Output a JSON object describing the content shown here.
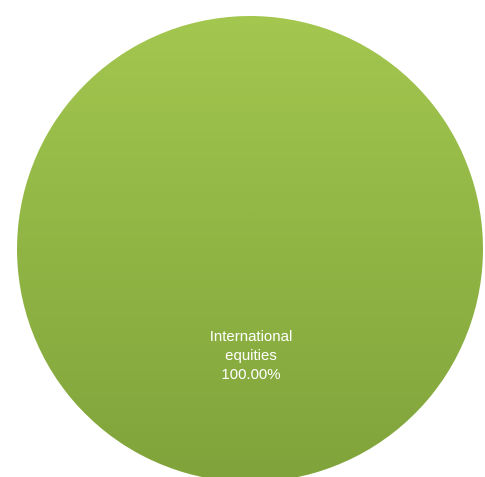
{
  "chart_data": {
    "type": "pie",
    "categories": [
      "International equities"
    ],
    "values": [
      100.0
    ],
    "slices": [
      {
        "label_lines": [
          "International",
          "equities",
          "100.00%"
        ],
        "value": 100.0,
        "percent": "100.00%",
        "color_top": "#a2c64e",
        "color_bottom": "#7fa33a"
      }
    ],
    "legend": "none",
    "grid": false
  }
}
